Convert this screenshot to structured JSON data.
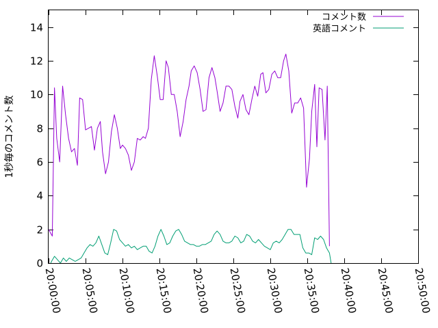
{
  "chart_data": {
    "type": "line",
    "ylabel": "1秒毎のコメント数",
    "ylim": [
      0,
      15
    ],
    "yticks": [
      0,
      2,
      4,
      6,
      8,
      10,
      12,
      14
    ],
    "xlim_minutes": [
      0,
      50
    ],
    "xticks": [
      {
        "minute": 0,
        "label": "20:00:00"
      },
      {
        "minute": 5,
        "label": "20:05:00"
      },
      {
        "minute": 10,
        "label": "20:10:00"
      },
      {
        "minute": 15,
        "label": "20:15:00"
      },
      {
        "minute": 20,
        "label": "20:20:00"
      },
      {
        "minute": 25,
        "label": "20:25:00"
      },
      {
        "minute": 30,
        "label": "20:30:00"
      },
      {
        "minute": 35,
        "label": "20:35:00"
      },
      {
        "minute": 40,
        "label": "20:40:00"
      },
      {
        "minute": 45,
        "label": "20:45:00"
      },
      {
        "minute": 50,
        "label": "20:50:00"
      }
    ],
    "legend_position": "top-right",
    "grid": false,
    "series": [
      {
        "name": "コメント数",
        "color": "#9400d3",
        "points": [
          [
            0.0,
            2.0
          ],
          [
            0.5,
            1.6
          ],
          [
            0.8,
            10.4
          ],
          [
            1.1,
            7.4
          ],
          [
            1.5,
            6.0
          ],
          [
            1.9,
            10.5
          ],
          [
            2.3,
            8.8
          ],
          [
            2.7,
            7.4
          ],
          [
            3.1,
            6.6
          ],
          [
            3.5,
            6.8
          ],
          [
            3.9,
            5.8
          ],
          [
            4.2,
            9.8
          ],
          [
            4.6,
            9.7
          ],
          [
            5.0,
            7.9
          ],
          [
            5.4,
            8.0
          ],
          [
            5.8,
            8.1
          ],
          [
            6.2,
            6.7
          ],
          [
            6.6,
            8.0
          ],
          [
            7.0,
            8.4
          ],
          [
            7.3,
            6.6
          ],
          [
            7.7,
            5.3
          ],
          [
            8.1,
            6.0
          ],
          [
            8.5,
            7.8
          ],
          [
            8.9,
            8.8
          ],
          [
            9.3,
            8.0
          ],
          [
            9.7,
            6.8
          ],
          [
            10.0,
            7.0
          ],
          [
            10.4,
            6.8
          ],
          [
            10.8,
            6.4
          ],
          [
            11.2,
            5.5
          ],
          [
            11.6,
            6.0
          ],
          [
            12.0,
            7.4
          ],
          [
            12.4,
            7.3
          ],
          [
            12.8,
            7.5
          ],
          [
            13.1,
            7.4
          ],
          [
            13.5,
            8.0
          ],
          [
            13.9,
            10.9
          ],
          [
            14.3,
            12.3
          ],
          [
            14.7,
            11.1
          ],
          [
            15.1,
            9.7
          ],
          [
            15.5,
            9.7
          ],
          [
            15.9,
            12.0
          ],
          [
            16.2,
            11.6
          ],
          [
            16.6,
            10.0
          ],
          [
            17.0,
            10.0
          ],
          [
            17.4,
            9.0
          ],
          [
            17.8,
            7.5
          ],
          [
            18.2,
            8.4
          ],
          [
            18.6,
            9.7
          ],
          [
            19.0,
            10.5
          ],
          [
            19.3,
            11.4
          ],
          [
            19.7,
            11.7
          ],
          [
            20.1,
            11.3
          ],
          [
            20.5,
            10.3
          ],
          [
            20.9,
            9.0
          ],
          [
            21.3,
            9.1
          ],
          [
            21.7,
            11.0
          ],
          [
            22.1,
            11.6
          ],
          [
            22.5,
            11.0
          ],
          [
            22.8,
            10.2
          ],
          [
            23.2,
            9.0
          ],
          [
            23.6,
            9.5
          ],
          [
            24.0,
            10.5
          ],
          [
            24.4,
            10.5
          ],
          [
            24.8,
            10.3
          ],
          [
            25.2,
            9.3
          ],
          [
            25.6,
            8.6
          ],
          [
            25.9,
            9.6
          ],
          [
            26.3,
            10.0
          ],
          [
            26.7,
            9.1
          ],
          [
            27.1,
            8.8
          ],
          [
            27.5,
            9.7
          ],
          [
            27.9,
            10.5
          ],
          [
            28.3,
            9.9
          ],
          [
            28.7,
            11.2
          ],
          [
            29.0,
            11.3
          ],
          [
            29.4,
            10.1
          ],
          [
            29.8,
            10.3
          ],
          [
            30.2,
            11.2
          ],
          [
            30.6,
            11.4
          ],
          [
            31.0,
            11.0
          ],
          [
            31.4,
            11.0
          ],
          [
            31.8,
            12.0
          ],
          [
            32.1,
            12.4
          ],
          [
            32.5,
            11.4
          ],
          [
            32.9,
            8.9
          ],
          [
            33.3,
            9.5
          ],
          [
            33.7,
            9.5
          ],
          [
            34.1,
            9.8
          ],
          [
            34.5,
            9.2
          ],
          [
            34.9,
            4.5
          ],
          [
            35.3,
            6.2
          ],
          [
            35.6,
            9.0
          ],
          [
            36.0,
            10.6
          ],
          [
            36.3,
            6.9
          ],
          [
            36.6,
            10.4
          ],
          [
            37.0,
            10.3
          ],
          [
            37.4,
            7.3
          ],
          [
            37.7,
            10.5
          ],
          [
            38.0,
            1.0
          ]
        ]
      },
      {
        "name": "英語コメント",
        "color": "#009e73",
        "points": [
          [
            0.0,
            -0.3
          ],
          [
            0.4,
            0.1
          ],
          [
            0.8,
            0.4
          ],
          [
            1.2,
            0.2
          ],
          [
            1.6,
            0.0
          ],
          [
            2.0,
            0.3
          ],
          [
            2.4,
            0.1
          ],
          [
            2.8,
            0.3
          ],
          [
            3.2,
            0.2
          ],
          [
            3.6,
            0.1
          ],
          [
            4.0,
            0.2
          ],
          [
            4.4,
            0.3
          ],
          [
            4.8,
            0.6
          ],
          [
            5.2,
            0.9
          ],
          [
            5.6,
            1.1
          ],
          [
            6.0,
            1.0
          ],
          [
            6.4,
            1.2
          ],
          [
            6.8,
            1.6
          ],
          [
            7.2,
            1.1
          ],
          [
            7.6,
            0.6
          ],
          [
            8.0,
            0.5
          ],
          [
            8.4,
            1.2
          ],
          [
            8.8,
            2.0
          ],
          [
            9.2,
            1.9
          ],
          [
            9.6,
            1.4
          ],
          [
            10.0,
            1.2
          ],
          [
            10.4,
            1.0
          ],
          [
            10.8,
            1.1
          ],
          [
            11.2,
            0.9
          ],
          [
            11.6,
            1.0
          ],
          [
            12.0,
            0.8
          ],
          [
            12.4,
            0.9
          ],
          [
            12.8,
            1.0
          ],
          [
            13.2,
            1.0
          ],
          [
            13.6,
            0.7
          ],
          [
            14.0,
            0.6
          ],
          [
            14.4,
            1.0
          ],
          [
            14.8,
            1.6
          ],
          [
            15.2,
            2.0
          ],
          [
            15.6,
            1.6
          ],
          [
            16.0,
            1.1
          ],
          [
            16.4,
            1.2
          ],
          [
            16.8,
            1.6
          ],
          [
            17.2,
            1.9
          ],
          [
            17.6,
            2.0
          ],
          [
            18.0,
            1.7
          ],
          [
            18.4,
            1.3
          ],
          [
            18.8,
            1.2
          ],
          [
            19.2,
            1.1
          ],
          [
            19.6,
            1.1
          ],
          [
            20.0,
            1.0
          ],
          [
            20.4,
            1.0
          ],
          [
            20.8,
            1.1
          ],
          [
            21.2,
            1.1
          ],
          [
            21.6,
            1.2
          ],
          [
            22.0,
            1.3
          ],
          [
            22.4,
            1.7
          ],
          [
            22.8,
            1.9
          ],
          [
            23.2,
            1.7
          ],
          [
            23.6,
            1.3
          ],
          [
            24.0,
            1.2
          ],
          [
            24.4,
            1.2
          ],
          [
            24.8,
            1.3
          ],
          [
            25.2,
            1.6
          ],
          [
            25.6,
            1.5
          ],
          [
            26.0,
            1.2
          ],
          [
            26.4,
            1.3
          ],
          [
            26.8,
            1.7
          ],
          [
            27.2,
            1.6
          ],
          [
            27.6,
            1.3
          ],
          [
            28.0,
            1.2
          ],
          [
            28.4,
            1.4
          ],
          [
            28.8,
            1.2
          ],
          [
            29.2,
            1.0
          ],
          [
            29.6,
            0.9
          ],
          [
            30.0,
            0.8
          ],
          [
            30.4,
            1.2
          ],
          [
            30.8,
            1.3
          ],
          [
            31.2,
            1.2
          ],
          [
            31.6,
            1.4
          ],
          [
            32.0,
            1.7
          ],
          [
            32.4,
            2.0
          ],
          [
            32.8,
            2.0
          ],
          [
            33.2,
            1.7
          ],
          [
            33.6,
            1.7
          ],
          [
            34.0,
            1.7
          ],
          [
            34.4,
            0.9
          ],
          [
            34.8,
            0.6
          ],
          [
            35.2,
            0.6
          ],
          [
            35.6,
            0.5
          ],
          [
            36.0,
            1.5
          ],
          [
            36.4,
            1.4
          ],
          [
            36.8,
            1.6
          ],
          [
            37.2,
            1.4
          ],
          [
            37.6,
            0.9
          ],
          [
            38.0,
            0.6
          ],
          [
            38.3,
            -0.2
          ]
        ]
      }
    ]
  }
}
